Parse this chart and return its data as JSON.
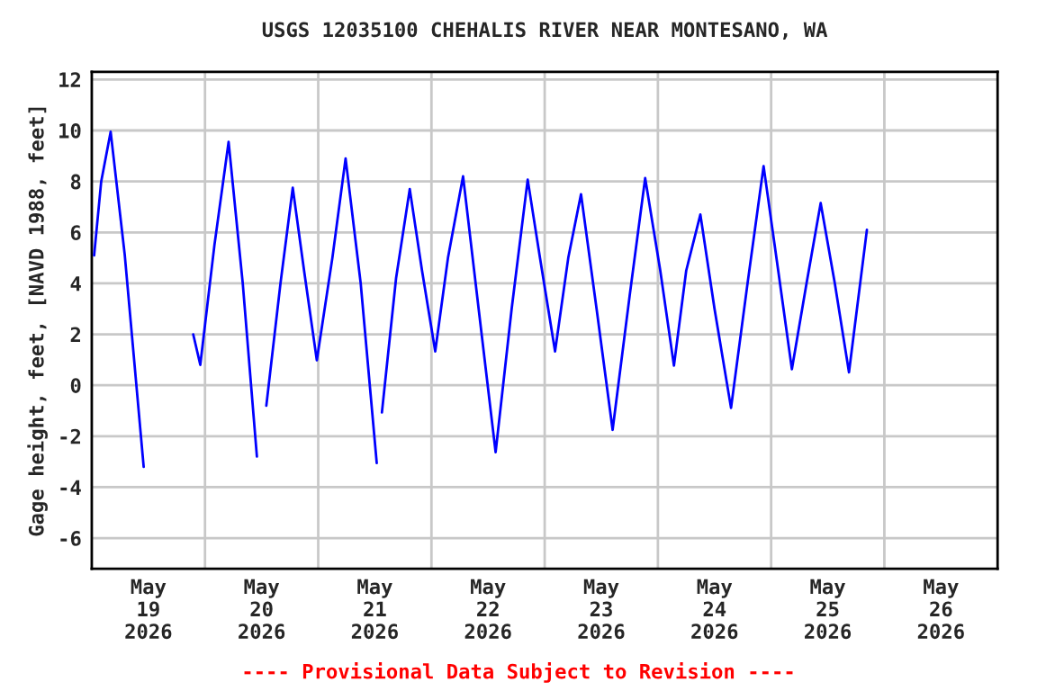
{
  "chart_data": {
    "type": "line",
    "title": "USGS 12035100 CHEHALIS RIVER NEAR MONTESANO, WA",
    "ylabel": "Gage height, feet, [NAVD 1988, feet]",
    "annotations": [
      "---- Provisional Data Subject to Revision ----"
    ],
    "x": [
      "2026-05-19T00:30",
      "2026-05-19T02:00",
      "2026-05-19T04:00",
      "2026-05-19T07:00",
      "2026-05-19T11:00",
      "2026-05-19T16:00",
      "2026-05-19T21:30",
      "2026-05-19T23:00",
      "2026-05-20T02:00",
      "2026-05-20T05:00",
      "2026-05-20T08:00",
      "2026-05-20T11:00",
      "2026-05-20T12:00",
      "2026-05-20T13:00",
      "2026-05-20T16:00",
      "2026-05-20T18:36",
      "2026-05-20T21:00",
      "2026-05-20T23:42",
      "2026-05-21T03:00",
      "2026-05-21T05:48",
      "2026-05-21T09:00",
      "2026-05-21T12:24",
      "2026-05-21T13:00",
      "2026-05-21T13:30",
      "2026-05-21T16:30",
      "2026-05-21T19:24",
      "2026-05-21T22:00",
      "2026-05-22T00:48",
      "2026-05-22T03:30",
      "2026-05-22T06:42",
      "2026-05-22T10:00",
      "2026-05-22T13:36",
      "2026-05-22T17:00",
      "2026-05-22T20:24",
      "2026-05-22T23:00",
      "2026-05-23T02:12",
      "2026-05-23T05:00",
      "2026-05-23T07:42",
      "2026-05-23T11:00",
      "2026-05-23T14:24",
      "2026-05-23T18:00",
      "2026-05-23T21:18",
      "2026-05-24T00:30",
      "2026-05-24T03:24",
      "2026-05-24T06:00",
      "2026-05-24T09:00",
      "2026-05-24T12:00",
      "2026-05-24T15:30",
      "2026-05-24T19:00",
      "2026-05-24T22:24",
      "2026-05-25T01:30",
      "2026-05-25T04:24",
      "2026-05-25T07:30",
      "2026-05-25T10:30",
      "2026-05-25T13:30",
      "2026-05-25T16:30",
      "2026-05-25T20:18"
    ],
    "series": [
      {
        "color": "#0000ff",
        "values": [
          5.1,
          8.0,
          9.95,
          5.1,
          -3.2,
          null,
          2.0,
          0.8,
          5.5,
          9.55,
          4.0,
          -2.8,
          null,
          -0.8,
          4.0,
          7.75,
          4.5,
          0.98,
          5.0,
          8.9,
          4.0,
          -3.05,
          null,
          -1.07,
          4.2,
          7.7,
          4.5,
          1.33,
          5.0,
          8.2,
          3.0,
          -2.63,
          3.0,
          8.07,
          5.0,
          1.33,
          5.0,
          7.5,
          3.0,
          -1.75,
          3.5,
          8.13,
          4.5,
          0.77,
          4.5,
          6.7,
          3.0,
          -0.89,
          4.0,
          8.6,
          4.5,
          0.63,
          4.0,
          7.15,
          4.0,
          0.51,
          6.1
        ]
      }
    ],
    "xlim": [
      "2026-05-19T00:00",
      "2026-05-27T00:00"
    ],
    "xticks": [
      {
        "value": "2026-05-19T12:00",
        "label": "May\n19\n2026"
      },
      {
        "value": "2026-05-20T00:00",
        "label": null
      },
      {
        "value": "2026-05-20T12:00",
        "label": "May\n20\n2026"
      },
      {
        "value": "2026-05-21T00:00",
        "label": null
      },
      {
        "value": "2026-05-21T12:00",
        "label": "May\n21\n2026"
      },
      {
        "value": "2026-05-22T00:00",
        "label": null
      },
      {
        "value": "2026-05-22T12:00",
        "label": "May\n22\n2026"
      },
      {
        "value": "2026-05-23T00:00",
        "label": null
      },
      {
        "value": "2026-05-23T12:00",
        "label": "May\n23\n2026"
      },
      {
        "value": "2026-05-24T00:00",
        "label": null
      },
      {
        "value": "2026-05-24T12:00",
        "label": "May\n24\n2026"
      },
      {
        "value": "2026-05-25T00:00",
        "label": null
      },
      {
        "value": "2026-05-25T12:00",
        "label": "May\n25\n2026"
      },
      {
        "value": "2026-05-26T00:00",
        "label": null
      },
      {
        "value": "2026-05-26T12:00",
        "label": "May\n26\n2026"
      }
    ],
    "ylim": [
      -7.2,
      12.3
    ],
    "yticks": [
      -6,
      -4,
      -2,
      0,
      2,
      4,
      6,
      8,
      10,
      12
    ],
    "grid": true
  }
}
